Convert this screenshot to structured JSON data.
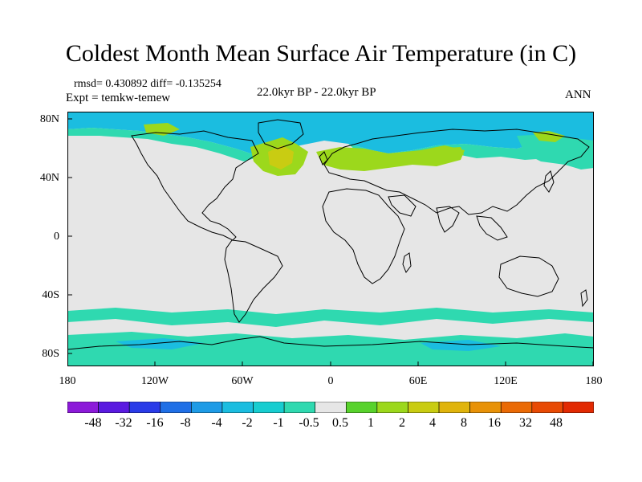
{
  "title": "Coldest Month Mean Surface Air Temperature (in C)",
  "stats": {
    "rmsd_diff": "rmsd= 0.430892 diff= -0.135254",
    "expt": "Expt = temkw-temew"
  },
  "subtitle": "22.0kyr BP - 22.0kyr BP",
  "season": "ANN",
  "axes": {
    "y_ticks": [
      "80N",
      "40N",
      "0",
      "40S",
      "80S"
    ],
    "x_ticks": [
      "180",
      "120W",
      "60W",
      "0",
      "60E",
      "120E",
      "180"
    ]
  },
  "colorbar": {
    "labels": [
      "-48",
      "-32",
      "-16",
      "-8",
      "-4",
      "-2",
      "-1",
      "-0.5",
      "0.5",
      "1",
      "2",
      "4",
      "8",
      "16",
      "32",
      "48"
    ],
    "colors": [
      "#8c1ad9",
      "#5a1ae0",
      "#2a3be8",
      "#1f6fe6",
      "#1e9be6",
      "#1bbde0",
      "#17cdd0",
      "#2fd9b0",
      "#e6e6e6",
      "#58d22c",
      "#9cd81c",
      "#c9cc12",
      "#e0b40c",
      "#e89208",
      "#ea6a05",
      "#e84a04",
      "#e22a02"
    ]
  },
  "legend_colors": {
    "neutral": "#e6e6e6",
    "cool_light": "#2fd9b0",
    "cool_mid": "#1bbde0",
    "warm_light": "#9cd81c",
    "warm_mid": "#c9cc12"
  }
}
